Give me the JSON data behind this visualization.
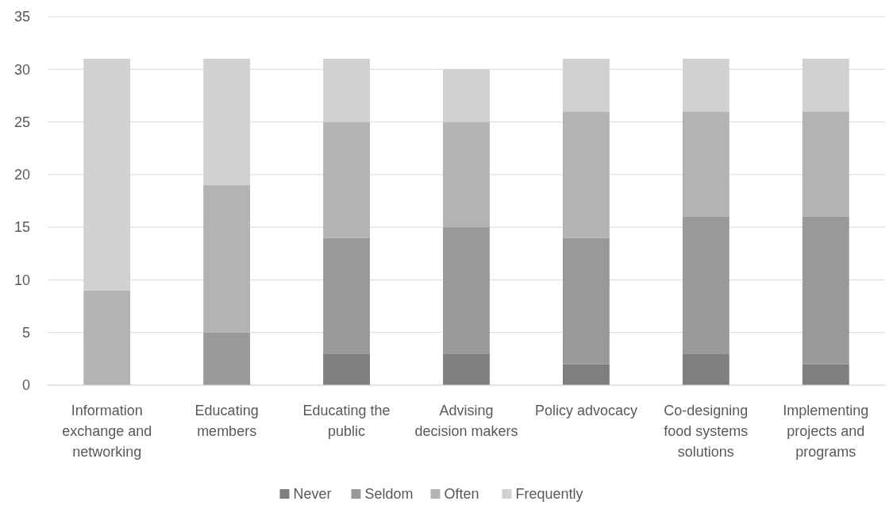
{
  "chart_data": {
    "type": "bar",
    "stacked": true,
    "categories": [
      "Information exchange and networking",
      "Educating members",
      "Educating the public",
      "Advising decision makers",
      "Policy advocacy",
      "Co-designing food systems solutions",
      "Implementing projects and programs"
    ],
    "series": [
      {
        "name": "Never",
        "color": "#7f7f7f",
        "values": [
          0,
          0,
          3,
          3,
          2,
          3,
          2
        ]
      },
      {
        "name": "Seldom",
        "color": "#999999",
        "values": [
          0,
          5,
          11,
          12,
          12,
          13,
          14
        ]
      },
      {
        "name": "Often",
        "color": "#b3b3b3",
        "values": [
          9,
          14,
          11,
          10,
          12,
          10,
          10
        ]
      },
      {
        "name": "Frequently",
        "color": "#d1d1d1",
        "values": [
          22,
          12,
          6,
          5,
          5,
          5,
          5
        ]
      }
    ],
    "ylim": [
      0,
      35
    ],
    "yticks": [
      0,
      5,
      10,
      15,
      20,
      25,
      30,
      35
    ],
    "grid": "y",
    "legend": "bottom"
  }
}
